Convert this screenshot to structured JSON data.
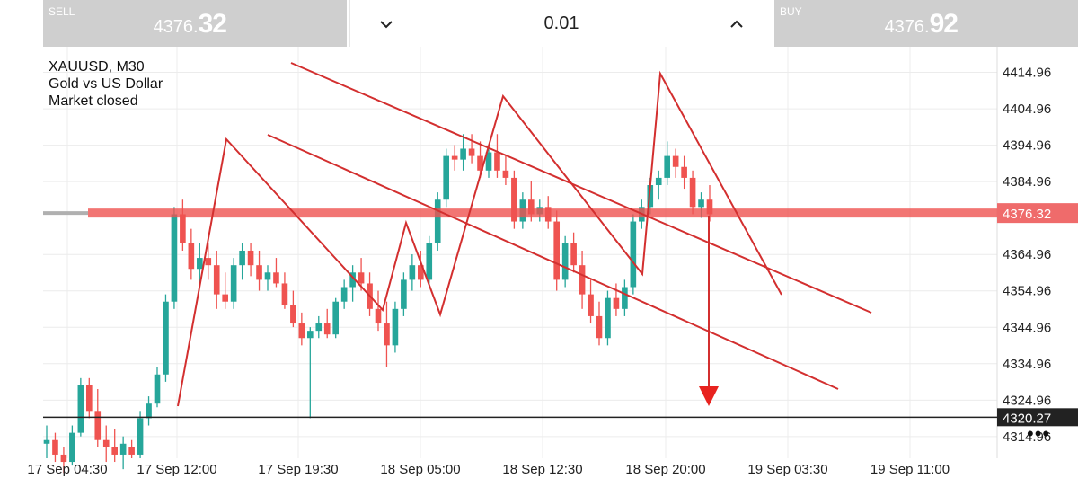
{
  "trade_bar": {
    "sell": {
      "label": "SELL",
      "price_main": "4376.",
      "price_big": "32"
    },
    "buy": {
      "label": "BUY",
      "price_main": "4376.",
      "price_big": "92"
    },
    "lot": {
      "value": "0.01",
      "decrease_icon": "chevron-down-icon",
      "increase_icon": "chevron-up-icon"
    }
  },
  "symbol_info": {
    "symbol": "XAUUSD, M30",
    "description": "Gold vs US Dollar",
    "status": "Market closed"
  },
  "more_menu": {
    "label": "•••",
    "icon": "more-dots-icon"
  },
  "colors": {
    "bull": "#26a69a",
    "bear": "#ef5350",
    "drawing": "#d32f2f",
    "support_line": "#222222"
  },
  "chart_data": {
    "type": "candlestick",
    "y_ticks": [
      "4414.96",
      "4404.96",
      "4394.96",
      "4384.96",
      "4364.96",
      "4354.96",
      "4344.96",
      "4334.96",
      "4324.96",
      "4314.96"
    ],
    "ylim": [
      4309,
      4422
    ],
    "x_ticks": [
      "17 Sep 04:30",
      "17 Sep 12:00",
      "17 Sep 19:30",
      "18 Sep 05:00",
      "18 Sep 12:30",
      "18 Sep 20:00",
      "19 Sep 03:30",
      "19 Sep 11:00"
    ],
    "current_price": {
      "value": 4376.32,
      "label": "4376.32"
    },
    "support_level": {
      "value": 4320.27,
      "label": "4320.27"
    },
    "candles": [
      [
        4313,
        4318,
        4309,
        4314
      ],
      [
        4314,
        4316,
        4308,
        4310
      ],
      [
        4310,
        4312,
        4305,
        4308
      ],
      [
        4308,
        4318,
        4307,
        4316
      ],
      [
        4316,
        4331,
        4315,
        4329
      ],
      [
        4329,
        4331,
        4320,
        4322
      ],
      [
        4322,
        4328,
        4312,
        4314
      ],
      [
        4314,
        4318,
        4308,
        4312
      ],
      [
        4312,
        4317,
        4308,
        4310
      ],
      [
        4310,
        4315,
        4306,
        4313
      ],
      [
        4312,
        4314,
        4309,
        4310
      ],
      [
        4310,
        4322,
        4309,
        4320
      ],
      [
        4320,
        4326,
        4318,
        4324
      ],
      [
        4324,
        4334,
        4323,
        4332
      ],
      [
        4332,
        4354,
        4330,
        4352
      ],
      [
        4352,
        4378,
        4350,
        4376
      ],
      [
        4376,
        4380,
        4366,
        4368
      ],
      [
        4368,
        4372,
        4358,
        4361
      ],
      [
        4361,
        4368,
        4356,
        4364
      ],
      [
        4364,
        4368,
        4358,
        4362
      ],
      [
        4362,
        4366,
        4350,
        4354
      ],
      [
        4354,
        4360,
        4350,
        4352
      ],
      [
        4352,
        4364,
        4350,
        4362
      ],
      [
        4362,
        4368,
        4358,
        4366
      ],
      [
        4366,
        4368,
        4359,
        4362
      ],
      [
        4362,
        4366,
        4355,
        4358
      ],
      [
        4358,
        4362,
        4355,
        4360
      ],
      [
        4360,
        4364,
        4356,
        4357
      ],
      [
        4357,
        4360,
        4350,
        4351
      ],
      [
        4351,
        4355,
        4345,
        4346
      ],
      [
        4346,
        4349,
        4340,
        4342
      ],
      [
        4342,
        4345,
        4320,
        4344
      ],
      [
        4344,
        4348,
        4342,
        4346
      ],
      [
        4346,
        4350,
        4342,
        4343
      ],
      [
        4343,
        4353,
        4342,
        4352
      ],
      [
        4352,
        4358,
        4350,
        4356
      ],
      [
        4356,
        4362,
        4352,
        4360
      ],
      [
        4360,
        4364,
        4355,
        4357
      ],
      [
        4357,
        4360,
        4348,
        4350
      ],
      [
        4350,
        4355,
        4344,
        4346
      ],
      [
        4346,
        4352,
        4334,
        4340
      ],
      [
        4340,
        4352,
        4338,
        4350
      ],
      [
        4350,
        4360,
        4348,
        4358
      ],
      [
        4358,
        4365,
        4355,
        4362
      ],
      [
        4362,
        4366,
        4356,
        4358
      ],
      [
        4358,
        4370,
        4357,
        4368
      ],
      [
        4368,
        4382,
        4366,
        4380
      ],
      [
        4380,
        4394,
        4378,
        4392
      ],
      [
        4392,
        4395,
        4388,
        4391
      ],
      [
        4391,
        4398,
        4388,
        4394
      ],
      [
        4394,
        4398,
        4390,
        4392
      ],
      [
        4392,
        4396,
        4386,
        4388
      ],
      [
        4388,
        4395,
        4386,
        4393
      ],
      [
        4393,
        4398,
        4386,
        4388
      ],
      [
        4388,
        4392,
        4384,
        4386
      ],
      [
        4386,
        4388,
        4372,
        4374
      ],
      [
        4374,
        4382,
        4372,
        4380
      ],
      [
        4380,
        4385,
        4374,
        4376
      ],
      [
        4376,
        4380,
        4374,
        4378
      ],
      [
        4378,
        4381,
        4372,
        4374
      ],
      [
        4374,
        4377,
        4355,
        4358
      ],
      [
        4358,
        4370,
        4356,
        4368
      ],
      [
        4368,
        4371,
        4360,
        4362
      ],
      [
        4362,
        4366,
        4350,
        4354
      ],
      [
        4354,
        4358,
        4346,
        4348
      ],
      [
        4348,
        4352,
        4340,
        4342
      ],
      [
        4342,
        4355,
        4340,
        4353
      ],
      [
        4353,
        4357,
        4348,
        4350
      ],
      [
        4350,
        4358,
        4348,
        4356
      ],
      [
        4356,
        4376,
        4354,
        4374
      ],
      [
        4374,
        4380,
        4372,
        4378
      ],
      [
        4378,
        4386,
        4376,
        4384
      ],
      [
        4384,
        4388,
        4380,
        4386
      ],
      [
        4386,
        4396,
        4384,
        4392
      ],
      [
        4392,
        4394,
        4386,
        4389
      ],
      [
        4389,
        4392,
        4383,
        4386
      ],
      [
        4386,
        4388,
        4376,
        4378
      ],
      [
        4378,
        4382,
        4375,
        4380
      ],
      [
        4380,
        4384,
        4374,
        4376
      ]
    ]
  }
}
